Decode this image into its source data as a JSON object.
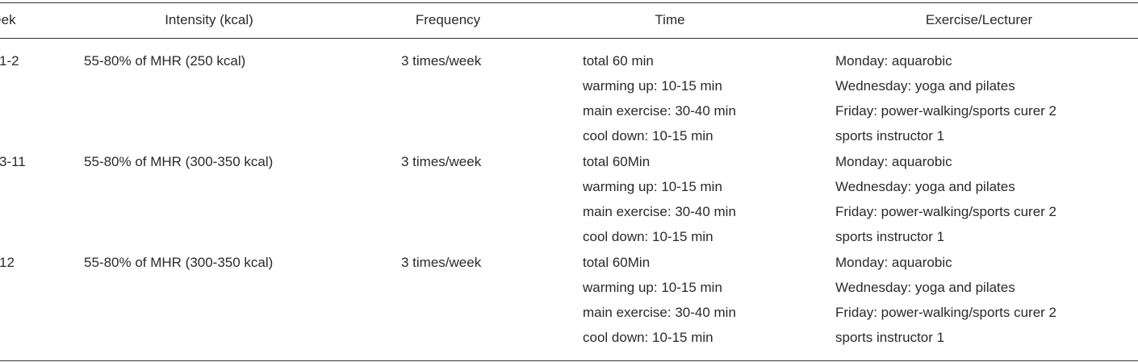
{
  "table": {
    "header": [
      "Week",
      "Intensity (kcal)",
      "Frequency",
      "Time",
      "Exercise/Lecturer"
    ],
    "rows": [
      [
        "1-2",
        "55-80% of MHR (250 kcal)",
        "3 times/week",
        [
          "total 60 min",
          "warming up: 10-15 min",
          "main exercise: 30-40 min",
          "cool down: 10-15 min"
        ],
        [
          "Monday: aquarobic",
          "Wednesday: yoga and pilates",
          "Friday: power-walking/sports curer 2",
          "sports instructor 1"
        ]
      ],
      [
        "3-11",
        "55-80% of MHR (300-350 kcal)",
        "3 times/week",
        [
          "total 60Min",
          "warming up: 10-15 min",
          "main exercise: 30-40 min",
          "cool down: 10-15 min"
        ],
        [
          "Monday: aquarobic",
          "Wednesday: yoga and pilates",
          "Friday: power-walking/sports curer 2",
          "sports instructor 1"
        ]
      ],
      [
        "12",
        "55-80% of MHR (300-350 kcal)",
        "3 times/week",
        [
          "total 60Min",
          "warming up: 10-15 min",
          "main exercise: 30-40 min",
          "cool down: 10-15 min"
        ],
        [
          "Monday: aquarobic",
          "Wednesday: yoga and pilates",
          "Friday: power-walking/sports curer 2",
          "sports instructor 1"
        ]
      ]
    ]
  }
}
